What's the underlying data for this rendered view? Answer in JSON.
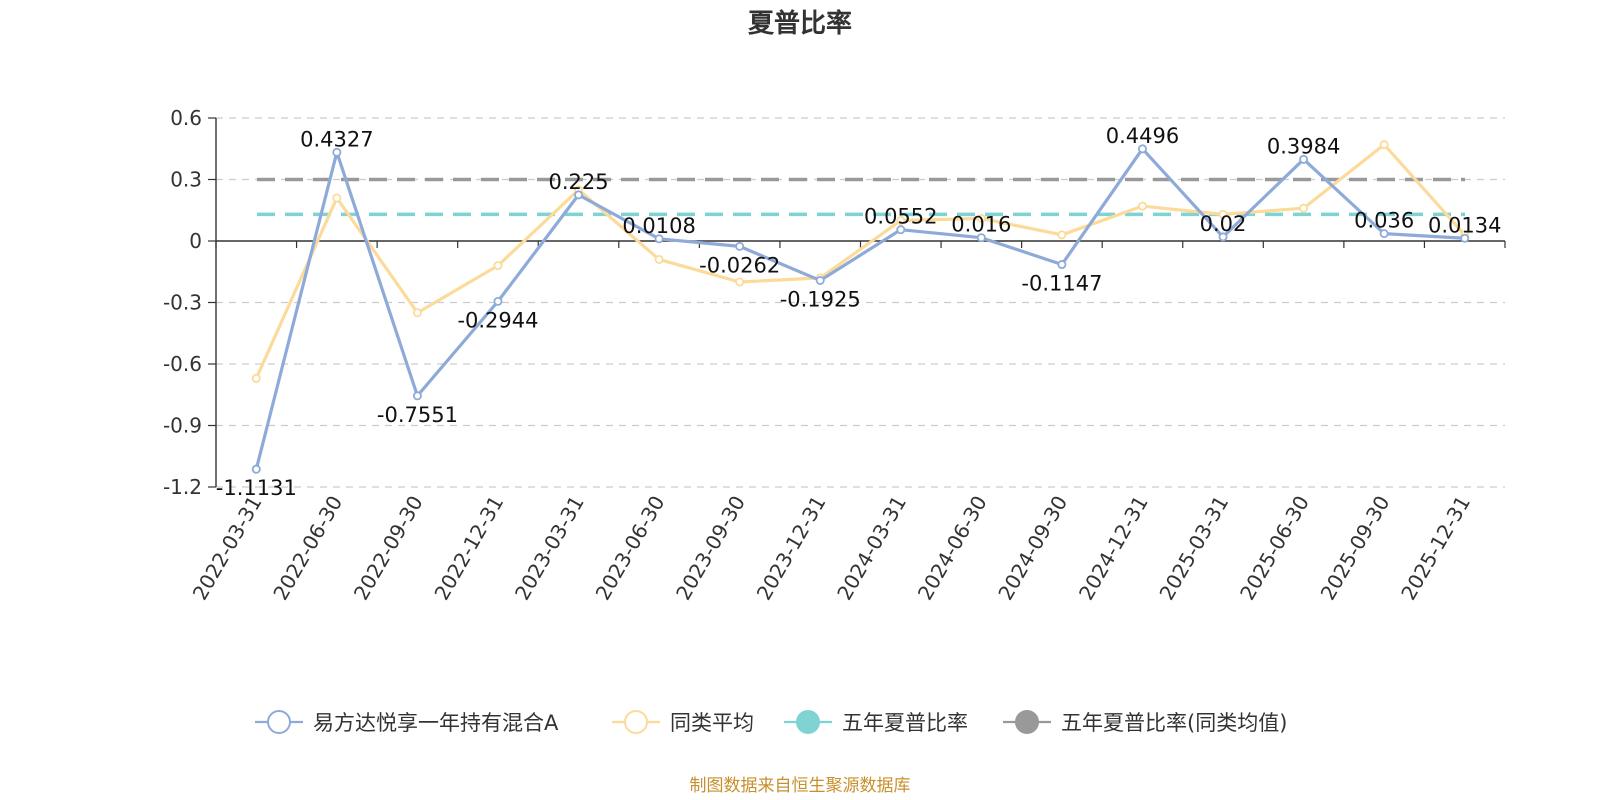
{
  "chart_data": {
    "type": "line",
    "title": "夏普比率",
    "categories": [
      "2022-03-31",
      "2022-06-30",
      "2022-09-30",
      "2022-12-31",
      "2023-03-31",
      "2023-06-30",
      "2023-09-30",
      "2023-12-31",
      "2024-03-31",
      "2024-06-30",
      "2024-09-30",
      "2024-12-31",
      "2025-03-31",
      "2025-06-30",
      "2025-09-30",
      "2025-12-31"
    ],
    "y_ticks": [
      "0.6",
      "0.3",
      "0",
      "-0.3",
      "-0.6",
      "-0.9",
      "-1.2"
    ],
    "ylim": [
      -1.2,
      0.6
    ],
    "grid": true,
    "legend_position": "bottom",
    "series": [
      {
        "name": "易方达悦享一年持有混合A",
        "color": "#8eaad9",
        "values": [
          -1.1131,
          0.4327,
          -0.7551,
          -0.2944,
          0.225,
          0.0108,
          -0.0262,
          -0.1925,
          0.0552,
          0.016,
          -0.1147,
          0.4496,
          0.02,
          0.3984,
          0.036,
          0.0134
        ],
        "labels": [
          "-1.1131",
          "0.4327",
          "-0.7551",
          "-0.2944",
          "0.225",
          "0.0108",
          "-0.0262",
          "-0.1925",
          "0.0552",
          "0.016",
          "-0.1147",
          "0.4496",
          "0.02",
          "0.3984",
          "0.036",
          "0.0134"
        ]
      },
      {
        "name": "同类平均",
        "color": "#fcdb9a",
        "values": [
          -0.67,
          0.21,
          -0.35,
          -0.12,
          0.25,
          -0.09,
          -0.2,
          -0.18,
          0.1,
          0.11,
          0.03,
          0.17,
          0.13,
          0.16,
          0.47,
          0.03
        ]
      },
      {
        "name": "五年夏普比率",
        "color": "#7fd3d3",
        "constant": 0.13
      },
      {
        "name": "五年夏普比率(同类均值)",
        "color": "#999999",
        "constant": 0.3
      }
    ]
  },
  "source_text": "制图数据来自恒生聚源数据库"
}
